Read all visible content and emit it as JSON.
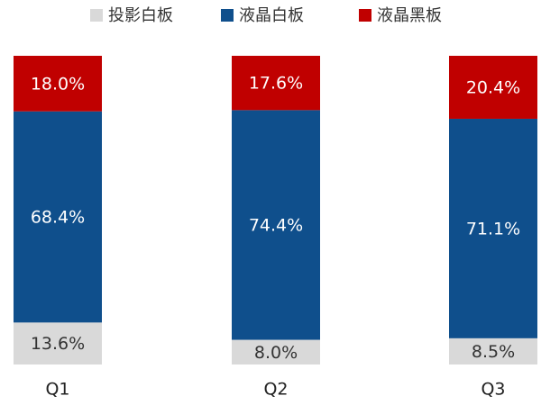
{
  "chart_data": {
    "type": "stacked_bar",
    "categories": [
      "Q1",
      "Q2",
      "Q3"
    ],
    "series": [
      {
        "name": "投影白板",
        "color": "#d9d9d9",
        "values": [
          13.6,
          8.0,
          8.5
        ],
        "value_labels": [
          "13.6%",
          "8.0%",
          "8.5%"
        ]
      },
      {
        "name": "液晶白板",
        "color": "#0f4f8c",
        "values": [
          68.4,
          74.4,
          71.1
        ],
        "value_labels": [
          "68.4%",
          "74.4%",
          "71.1%"
        ]
      },
      {
        "name": "液晶黑板",
        "color": "#c00000",
        "values": [
          18.0,
          17.6,
          20.4
        ],
        "value_labels": [
          "18.0%",
          "17.6%",
          "20.4%"
        ]
      }
    ],
    "ylim": [
      0,
      100
    ],
    "legend": "top"
  }
}
